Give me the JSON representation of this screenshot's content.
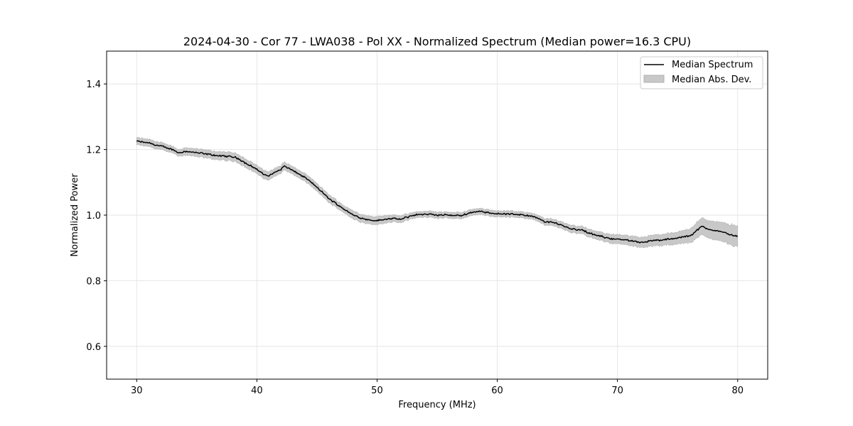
{
  "chart_data": {
    "type": "line",
    "title": "2024-04-30 - Cor 77 - LWA038 - Pol XX - Normalized Spectrum (Median power=16.3 CPU)",
    "xlabel": "Frequency (MHz)",
    "ylabel": "Normalized Power",
    "xlim": [
      27.5,
      82.5
    ],
    "ylim": [
      0.5,
      1.5
    ],
    "xticks": [
      30,
      40,
      50,
      60,
      70,
      80
    ],
    "yticks": [
      0.6,
      0.8,
      1.0,
      1.2,
      1.4
    ],
    "xtick_labels": [
      "30",
      "40",
      "50",
      "60",
      "70",
      "80"
    ],
    "ytick_labels": [
      "0.6",
      "0.8",
      "1.0",
      "1.2",
      "1.4"
    ],
    "grid": true,
    "legend_position": "top-right",
    "legend": [
      "Median Spectrum",
      "Median Abs. Dev."
    ],
    "colors": {
      "line": "#000000",
      "band": "#c8c8c8",
      "grid": "#e6e6e6"
    },
    "series": [
      {
        "name": "Median Spectrum",
        "x": [
          30,
          31,
          32,
          33,
          33.5,
          34,
          35,
          36,
          37,
          38,
          38.5,
          39,
          39.5,
          40,
          40.5,
          41,
          41.5,
          42,
          42.3,
          43,
          44,
          45,
          46,
          47,
          48,
          49,
          50,
          51,
          52,
          53,
          54,
          55,
          56,
          57,
          57.5,
          58,
          58.5,
          59,
          60,
          61,
          62,
          63,
          64,
          65,
          66,
          67,
          68,
          69,
          70,
          71,
          72,
          73,
          74,
          75,
          76,
          76.5,
          77,
          77.5,
          78,
          78.5,
          79,
          79.5,
          80
        ],
        "median": [
          1.225,
          1.22,
          1.21,
          1.2,
          1.19,
          1.195,
          1.19,
          1.185,
          1.18,
          1.178,
          1.172,
          1.16,
          1.15,
          1.14,
          1.125,
          1.12,
          1.13,
          1.14,
          1.15,
          1.135,
          1.115,
          1.085,
          1.05,
          1.025,
          1.0,
          0.988,
          0.983,
          0.99,
          0.987,
          1.0,
          1.003,
          1.0,
          1.0,
          0.998,
          1.005,
          1.01,
          1.012,
          1.008,
          1.005,
          1.003,
          1.002,
          0.995,
          0.98,
          0.975,
          0.96,
          0.955,
          0.94,
          0.932,
          0.926,
          0.922,
          0.918,
          0.922,
          0.925,
          0.93,
          0.937,
          0.95,
          0.965,
          0.958,
          0.955,
          0.95,
          0.945,
          0.94,
          0.935
        ],
        "mad": [
          0.012,
          0.012,
          0.012,
          0.011,
          0.011,
          0.012,
          0.013,
          0.013,
          0.014,
          0.014,
          0.014,
          0.014,
          0.014,
          0.014,
          0.014,
          0.014,
          0.013,
          0.013,
          0.013,
          0.013,
          0.013,
          0.013,
          0.013,
          0.012,
          0.013,
          0.013,
          0.013,
          0.012,
          0.011,
          0.01,
          0.01,
          0.01,
          0.01,
          0.01,
          0.01,
          0.01,
          0.01,
          0.01,
          0.01,
          0.01,
          0.01,
          0.01,
          0.011,
          0.011,
          0.012,
          0.012,
          0.013,
          0.014,
          0.015,
          0.016,
          0.017,
          0.018,
          0.019,
          0.02,
          0.022,
          0.025,
          0.028,
          0.028,
          0.03,
          0.03,
          0.032,
          0.034,
          0.034
        ]
      }
    ]
  }
}
